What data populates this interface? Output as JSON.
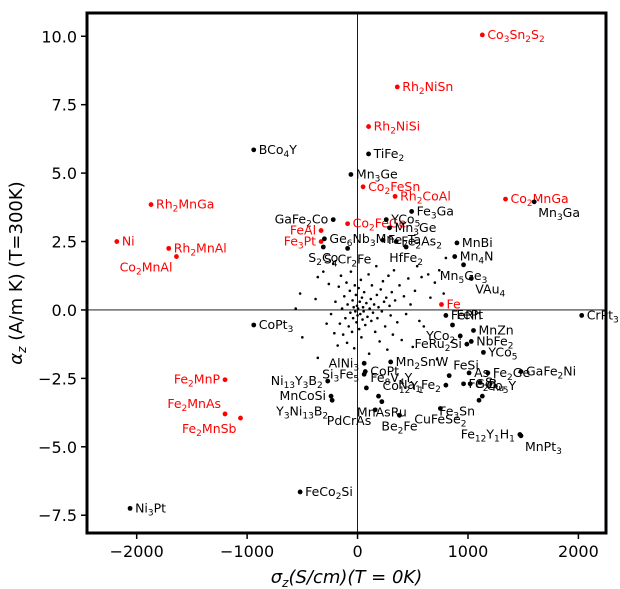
{
  "chart_data": {
    "type": "scatter",
    "xlabel": "σ_z(S/cm)(T = 0K)",
    "ylabel": "α_z (A/m K) (T=300K)",
    "xlim": [
      -2450,
      2250
    ],
    "ylim": [
      -8.15,
      10.85
    ],
    "xticks": [
      -2000,
      -1000,
      0,
      1000,
      2000
    ],
    "yticks": [
      -7.5,
      -5.0,
      -2.5,
      0.0,
      2.5,
      5.0,
      7.5,
      10.0
    ],
    "ytick_labels": [
      "−7.5",
      "−5.0",
      "−2.5",
      "0.0",
      "2.5",
      "5.0",
      "7.5",
      "10.0"
    ],
    "xtick_labels": [
      "−2000",
      "−1000",
      "0",
      "1000",
      "2000"
    ],
    "reference_lines": {
      "x": 0,
      "y": 0
    },
    "grid": false,
    "colors": {
      "highlighted": "#ff0000",
      "normal": "#000000"
    },
    "labeled_points": [
      {
        "x": 1130,
        "y": 10.05,
        "name": "Co3Sn2S2",
        "label": [
          "Co",
          "3",
          "Sn",
          "2",
          "S",
          "2"
        ],
        "color": "red",
        "pos": "r"
      },
      {
        "x": 360,
        "y": 8.15,
        "name": "Rh2NiSn",
        "label": [
          "Rh",
          "2",
          "NiSn"
        ],
        "color": "red",
        "pos": "r"
      },
      {
        "x": 100,
        "y": 6.7,
        "name": "Rh2NiSi",
        "label": [
          "Rh",
          "2",
          "NiSi"
        ],
        "color": "red",
        "pos": "r"
      },
      {
        "x": 100,
        "y": 5.7,
        "name": "TiFe2",
        "label": [
          "TiFe",
          "2"
        ],
        "color": "black",
        "pos": "r"
      },
      {
        "x": -940,
        "y": 5.85,
        "name": "BCo4Y",
        "label": [
          "BCo",
          "4",
          "Y"
        ],
        "color": "black",
        "pos": "r"
      },
      {
        "x": -60,
        "y": 4.95,
        "name": "Mn3Ge",
        "label": [
          "Mn",
          "3",
          "Ge"
        ],
        "color": "black",
        "pos": "r"
      },
      {
        "x": 50,
        "y": 4.5,
        "name": "Co2FeSn",
        "label": [
          "Co",
          "2",
          "FeSn"
        ],
        "color": "red",
        "pos": "r"
      },
      {
        "x": 340,
        "y": 4.15,
        "name": "Rh2CoAl",
        "label": [
          "Rh",
          "2",
          "CoAl"
        ],
        "color": "red",
        "pos": "r"
      },
      {
        "x": 1340,
        "y": 4.05,
        "name": "Co2MnGa",
        "label": [
          "Co",
          "2",
          "MnGa"
        ],
        "color": "red",
        "pos": "r"
      },
      {
        "x": 1600,
        "y": 3.95,
        "name": "Mn3Ga",
        "label": [
          "Mn",
          "3",
          "Ga"
        ],
        "color": "black",
        "pos": "br"
      },
      {
        "x": -1870,
        "y": 3.85,
        "name": "Rh2MnGa",
        "label": [
          "Rh",
          "2",
          "MnGa"
        ],
        "color": "red",
        "pos": "r"
      },
      {
        "x": 490,
        "y": 3.6,
        "name": "Fe3Ga",
        "label": [
          "Fe",
          "3",
          "Ga"
        ],
        "color": "black",
        "pos": "r"
      },
      {
        "x": -220,
        "y": 3.3,
        "name": "GaFe2Co",
        "label": [
          "GaFe",
          "2",
          "Co"
        ],
        "color": "black",
        "pos": "l"
      },
      {
        "x": -90,
        "y": 3.15,
        "name": "Co2FeGe",
        "label": [
          "Co",
          "2",
          "FeGe"
        ],
        "color": "red",
        "pos": "r"
      },
      {
        "x": 260,
        "y": 3.3,
        "name": "YCo5",
        "label": [
          "YCo",
          "5"
        ],
        "color": "black",
        "pos": "r"
      },
      {
        "x": 290,
        "y": 3.0,
        "name": "Mn3Ge",
        "label": [
          "Mn",
          "3",
          "Ge"
        ],
        "color": "black",
        "pos": "r"
      },
      {
        "x": -330,
        "y": 2.9,
        "name": "FeAl",
        "label": [
          "FeAl"
        ],
        "color": "red",
        "pos": "l"
      },
      {
        "x": -330,
        "y": 2.5,
        "name": "Fe3Pt",
        "label": [
          "Fe",
          "3",
          "Pt"
        ],
        "color": "red",
        "pos": "l"
      },
      {
        "x": -300,
        "y": 2.6,
        "name": "Ge6Nb3Mn",
        "label": [
          "Ge",
          "6",
          "Nb",
          "3",
          "Mn"
        ],
        "color": "black",
        "pos": "r"
      },
      {
        "x": 230,
        "y": 2.55,
        "name": "Fe2Ta",
        "label": [
          "Fe",
          "2",
          "Ta"
        ],
        "color": "black",
        "pos": "r"
      },
      {
        "x": 350,
        "y": 2.5,
        "name": "Fe2As2",
        "label": [
          "Fe",
          "2",
          "As",
          "2"
        ],
        "color": "black",
        "pos": "r"
      },
      {
        "x": 900,
        "y": 2.45,
        "name": "MnBi",
        "label": [
          "MnBi"
        ],
        "color": "black",
        "pos": "r"
      },
      {
        "x": -2180,
        "y": 2.5,
        "name": "Ni",
        "label": [
          "Ni"
        ],
        "color": "red",
        "pos": "r"
      },
      {
        "x": -1710,
        "y": 2.25,
        "name": "Rh2MnAl",
        "label": [
          "Rh",
          "2",
          "MnAl"
        ],
        "color": "red",
        "pos": "r"
      },
      {
        "x": -1640,
        "y": 1.95,
        "name": "Co2MnAl",
        "label": [
          "Co",
          "2",
          "MnAl"
        ],
        "color": "red",
        "pos": "bl"
      },
      {
        "x": -310,
        "y": 2.3,
        "name": "S2Co",
        "label": [
          "S",
          "2",
          "Co"
        ],
        "color": "black",
        "pos": "b"
      },
      {
        "x": -90,
        "y": 2.25,
        "name": "S4Cr2Fe",
        "label": [
          "S",
          "4",
          "Cr",
          "2",
          "Fe"
        ],
        "color": "black",
        "pos": "b"
      },
      {
        "x": 440,
        "y": 2.3,
        "name": "HfFe2",
        "label": [
          "HfFe",
          "2"
        ],
        "color": "black",
        "pos": "b"
      },
      {
        "x": 880,
        "y": 1.95,
        "name": "Mn4N",
        "label": [
          "Mn",
          "4",
          "N"
        ],
        "color": "black",
        "pos": "r"
      },
      {
        "x": 960,
        "y": 1.65,
        "name": "Mn5Ge3",
        "label": [
          "Mn",
          "5",
          "Ge",
          "3"
        ],
        "color": "black",
        "pos": "b"
      },
      {
        "x": 1030,
        "y": 1.15,
        "name": "VAu4",
        "label": [
          "VAu",
          "4"
        ],
        "color": "black",
        "pos": "br"
      },
      {
        "x": 760,
        "y": 0.2,
        "name": "Fe",
        "label": [
          "Fe"
        ],
        "color": "red",
        "pos": "r"
      },
      {
        "x": 2030,
        "y": -0.2,
        "name": "CrPt3",
        "label": [
          "CrPt",
          "3"
        ],
        "color": "black",
        "pos": "r"
      },
      {
        "x": 800,
        "y": -0.2,
        "name": "FeRh",
        "label": [
          "FeRh"
        ],
        "color": "black",
        "pos": "r"
      },
      {
        "x": 860,
        "y": -0.55,
        "name": "FePt",
        "label": [
          "FePt"
        ],
        "color": "black",
        "pos": "tr"
      },
      {
        "x": -940,
        "y": -0.55,
        "name": "CoPt3",
        "label": [
          "CoPt",
          "3"
        ],
        "color": "black",
        "pos": "r"
      },
      {
        "x": 1050,
        "y": -0.75,
        "name": "MnZn",
        "label": [
          "MnZn"
        ],
        "color": "black",
        "pos": "r"
      },
      {
        "x": 930,
        "y": -0.95,
        "name": "YCo2",
        "label": [
          "YCo",
          "2"
        ],
        "color": "black",
        "pos": "l"
      },
      {
        "x": 1030,
        "y": -1.15,
        "name": "NbFe2",
        "label": [
          "NbFe",
          "2"
        ],
        "color": "black",
        "pos": "r"
      },
      {
        "x": 990,
        "y": -1.25,
        "name": "FeRu2Si",
        "label": [
          "FeRu",
          "2",
          "Si"
        ],
        "color": "black",
        "pos": "l"
      },
      {
        "x": 1140,
        "y": -1.55,
        "name": "YCo5",
        "label": [
          "YCo",
          "5"
        ],
        "color": "black",
        "pos": "r"
      },
      {
        "x": 300,
        "y": -1.9,
        "name": "Mn2SnW",
        "label": [
          "Mn",
          "2",
          "SnW"
        ],
        "color": "black",
        "pos": "r"
      },
      {
        "x": 60,
        "y": -1.95,
        "name": "AlNi3",
        "label": [
          "AlNi",
          "3"
        ],
        "color": "black",
        "pos": "l"
      },
      {
        "x": 70,
        "y": -2.25,
        "name": "CoPt",
        "label": [
          "CoPt"
        ],
        "color": "black",
        "pos": "r"
      },
      {
        "x": 60,
        "y": -2.35,
        "name": "Si3Fe5",
        "label": [
          "Si",
          "3",
          "Fe",
          "5"
        ],
        "color": "black",
        "pos": "l"
      },
      {
        "x": 1010,
        "y": -2.3,
        "name": "As",
        "label": [
          "As"
        ],
        "color": "black",
        "pos": "r"
      },
      {
        "x": 1480,
        "y": -2.25,
        "name": "GaFe2Ni",
        "label": [
          "GaFe",
          "2",
          "Ni"
        ],
        "color": "black",
        "pos": "r"
      },
      {
        "x": 1180,
        "y": -2.3,
        "name": "Fe2Ge",
        "label": [
          "Fe",
          "2",
          "Ge"
        ],
        "color": "black",
        "pos": "r"
      },
      {
        "x": -1200,
        "y": -2.55,
        "name": "Fe2MnP",
        "label": [
          "Fe",
          "2",
          "MnP"
        ],
        "color": "red",
        "pos": "l"
      },
      {
        "x": -270,
        "y": -2.6,
        "name": "Ni13Y3B2",
        "label": [
          "Ni",
          "13",
          "Y",
          "3",
          "B",
          "2"
        ],
        "color": "black",
        "pos": "l"
      },
      {
        "x": 830,
        "y": -2.4,
        "name": "FeSi",
        "label": [
          "FeSi"
        ],
        "color": "black",
        "pos": "tr"
      },
      {
        "x": 80,
        "y": -2.85,
        "name": "Fe8V4Y",
        "label": [
          "Fe",
          "8",
          "V",
          "4",
          "Y"
        ],
        "color": "black",
        "pos": "tr"
      },
      {
        "x": 800,
        "y": -2.75,
        "name": "Na1Fe2",
        "label": [
          "Na",
          "1",
          "Fe",
          "2"
        ],
        "color": "black",
        "pos": "l"
      },
      {
        "x": 960,
        "y": -2.7,
        "name": "Fe2B",
        "label": [
          "Fe",
          "2",
          "B"
        ],
        "color": "black",
        "pos": "r"
      },
      {
        "x": 1020,
        "y": -2.7,
        "name": "GeRu",
        "label": [
          "Ge",
          "Ru"
        ],
        "color": "black",
        "pos": "r"
      },
      {
        "x": 1110,
        "y": -2.65,
        "name": "Si",
        "label": [
          "Si"
        ],
        "color": "black",
        "pos": "r"
      },
      {
        "x": -240,
        "y": -3.15,
        "name": "MnCoSi",
        "label": [
          "MnCoSi"
        ],
        "color": "black",
        "pos": "l"
      },
      {
        "x": 190,
        "y": -3.15,
        "name": "Co12Y1",
        "label": [
          "Co",
          "12",
          "Y",
          "1"
        ],
        "color": "black",
        "pos": "tr"
      },
      {
        "x": 1130,
        "y": -3.15,
        "name": "Co5Y",
        "label": [
          "Co",
          "5",
          "Y"
        ],
        "color": "black",
        "pos": "tr"
      },
      {
        "x": 1100,
        "y": -3.3,
        "name": "Fe3Sn",
        "label": [
          "Fe",
          "3",
          "Sn"
        ],
        "color": "black",
        "pos": "bl"
      },
      {
        "x": -1200,
        "y": -3.8,
        "name": "Fe2MnAs",
        "label": [
          "Fe",
          "2",
          "MnAs"
        ],
        "color": "red",
        "pos": "tl"
      },
      {
        "x": -1060,
        "y": -3.95,
        "name": "Fe2MnSb",
        "label": [
          "Fe",
          "2",
          "MnSb"
        ],
        "color": "red",
        "pos": "bl"
      },
      {
        "x": -230,
        "y": -3.3,
        "name": "Y3Ni13B2",
        "label": [
          "Y",
          "3",
          "Ni",
          "13",
          "B",
          "2"
        ],
        "color": "black",
        "pos": "bl"
      },
      {
        "x": 220,
        "y": -3.35,
        "name": "MnAsRu",
        "label": [
          "MnAsRu"
        ],
        "color": "black",
        "pos": "b"
      },
      {
        "x": 750,
        "y": -3.6,
        "name": "CuFeSe2",
        "label": [
          "CuFeSe",
          "2"
        ],
        "color": "black",
        "pos": "b"
      },
      {
        "x": 160,
        "y": -3.65,
        "name": "PdCrAs",
        "label": [
          "PdCrAs"
        ],
        "color": "black",
        "pos": "bl"
      },
      {
        "x": 380,
        "y": -3.85,
        "name": "Be2Fe",
        "label": [
          "Be",
          "2",
          "Fe"
        ],
        "color": "black",
        "pos": "b"
      },
      {
        "x": 1470,
        "y": -4.55,
        "name": "Fe12Y1H1",
        "label": [
          "Fe",
          "12",
          "Y",
          "1",
          "H",
          "1"
        ],
        "color": "black",
        "pos": "l"
      },
      {
        "x": 1480,
        "y": -4.6,
        "name": "MnPt3",
        "label": [
          "MnPt",
          "3"
        ],
        "color": "black",
        "pos": "br"
      },
      {
        "x": -520,
        "y": -6.65,
        "name": "FeCo2Si",
        "label": [
          "FeCo",
          "2",
          "Si"
        ],
        "color": "black",
        "pos": "r"
      },
      {
        "x": -2060,
        "y": -7.25,
        "name": "Ni3Pt",
        "label": [
          "Ni",
          "3",
          "Pt"
        ],
        "color": "black",
        "pos": "r"
      }
    ],
    "unlabeled_points": [
      [
        -560,
        0.05
      ],
      [
        -520,
        0.6
      ],
      [
        -500,
        -1.0
      ],
      [
        -360,
        -1.75
      ],
      [
        -380,
        0.4
      ],
      [
        -360,
        1.2
      ],
      [
        -310,
        1.4
      ],
      [
        -280,
        -0.5
      ],
      [
        -260,
        0.95
      ],
      [
        -240,
        -0.15
      ],
      [
        -220,
        1.7
      ],
      [
        -210,
        -0.85
      ],
      [
        -200,
        0.3
      ],
      [
        -180,
        -1.3
      ],
      [
        -170,
        0.85
      ],
      [
        -160,
        -0.5
      ],
      [
        -150,
        1.25
      ],
      [
        -140,
        0.05
      ],
      [
        -130,
        -0.9
      ],
      [
        -120,
        0.5
      ],
      [
        -110,
        -0.3
      ],
      [
        -100,
        1.0
      ],
      [
        -95,
        -1.2
      ],
      [
        -90,
        0.2
      ],
      [
        -80,
        -0.6
      ],
      [
        -70,
        0.7
      ],
      [
        -65,
        -0.1
      ],
      [
        -60,
        1.4
      ],
      [
        -50,
        -0.8
      ],
      [
        -45,
        0.35
      ],
      [
        -40,
        -0.3
      ],
      [
        -35,
        0.1
      ],
      [
        -30,
        -1.4
      ],
      [
        -25,
        0.9
      ],
      [
        -20,
        -0.05
      ],
      [
        -15,
        0.55
      ],
      [
        -10,
        -0.45
      ],
      [
        -5,
        0.15
      ],
      [
        0,
        -0.2
      ],
      [
        5,
        0.05
      ],
      [
        10,
        0.8
      ],
      [
        15,
        -0.7
      ],
      [
        20,
        0.3
      ],
      [
        25,
        -0.15
      ],
      [
        30,
        1.1
      ],
      [
        35,
        -1.0
      ],
      [
        40,
        0.45
      ],
      [
        45,
        -0.35
      ],
      [
        50,
        0.1
      ],
      [
        55,
        -0.05
      ],
      [
        60,
        0.65
      ],
      [
        70,
        -0.55
      ],
      [
        80,
        0.25
      ],
      [
        90,
        -0.25
      ],
      [
        100,
        1.3
      ],
      [
        105,
        -1.6
      ],
      [
        110,
        0.05
      ],
      [
        120,
        0.4
      ],
      [
        125,
        -0.4
      ],
      [
        130,
        0.9
      ],
      [
        140,
        -0.1
      ],
      [
        150,
        0.2
      ],
      [
        160,
        -0.8
      ],
      [
        170,
        1.6
      ],
      [
        175,
        0.55
      ],
      [
        180,
        -0.3
      ],
      [
        190,
        0.1
      ],
      [
        200,
        -1.15
      ],
      [
        210,
        0.75
      ],
      [
        220,
        -0.05
      ],
      [
        230,
        1.05
      ],
      [
        240,
        0.3
      ],
      [
        250,
        -0.6
      ],
      [
        260,
        0.45
      ],
      [
        270,
        -1.45
      ],
      [
        280,
        1.25
      ],
      [
        290,
        0.15
      ],
      [
        300,
        -0.2
      ],
      [
        310,
        0.65
      ],
      [
        320,
        -0.9
      ],
      [
        330,
        1.45
      ],
      [
        340,
        0.35
      ],
      [
        360,
        -0.45
      ],
      [
        380,
        0.9
      ],
      [
        400,
        -1.1
      ],
      [
        420,
        0.5
      ],
      [
        440,
        -0.15
      ],
      [
        460,
        1.15
      ],
      [
        480,
        0.2
      ],
      [
        500,
        -1.35
      ],
      [
        520,
        0.7
      ],
      [
        540,
        1.6
      ],
      [
        560,
        -0.4
      ],
      [
        580,
        1.2
      ],
      [
        600,
        -0.6
      ],
      [
        640,
        1.3
      ],
      [
        660,
        0.45
      ],
      [
        700,
        1.0
      ],
      [
        720,
        -1.8
      ],
      [
        740,
        1.45
      ],
      [
        780,
        0.6
      ],
      [
        800,
        1.9
      ]
    ]
  }
}
